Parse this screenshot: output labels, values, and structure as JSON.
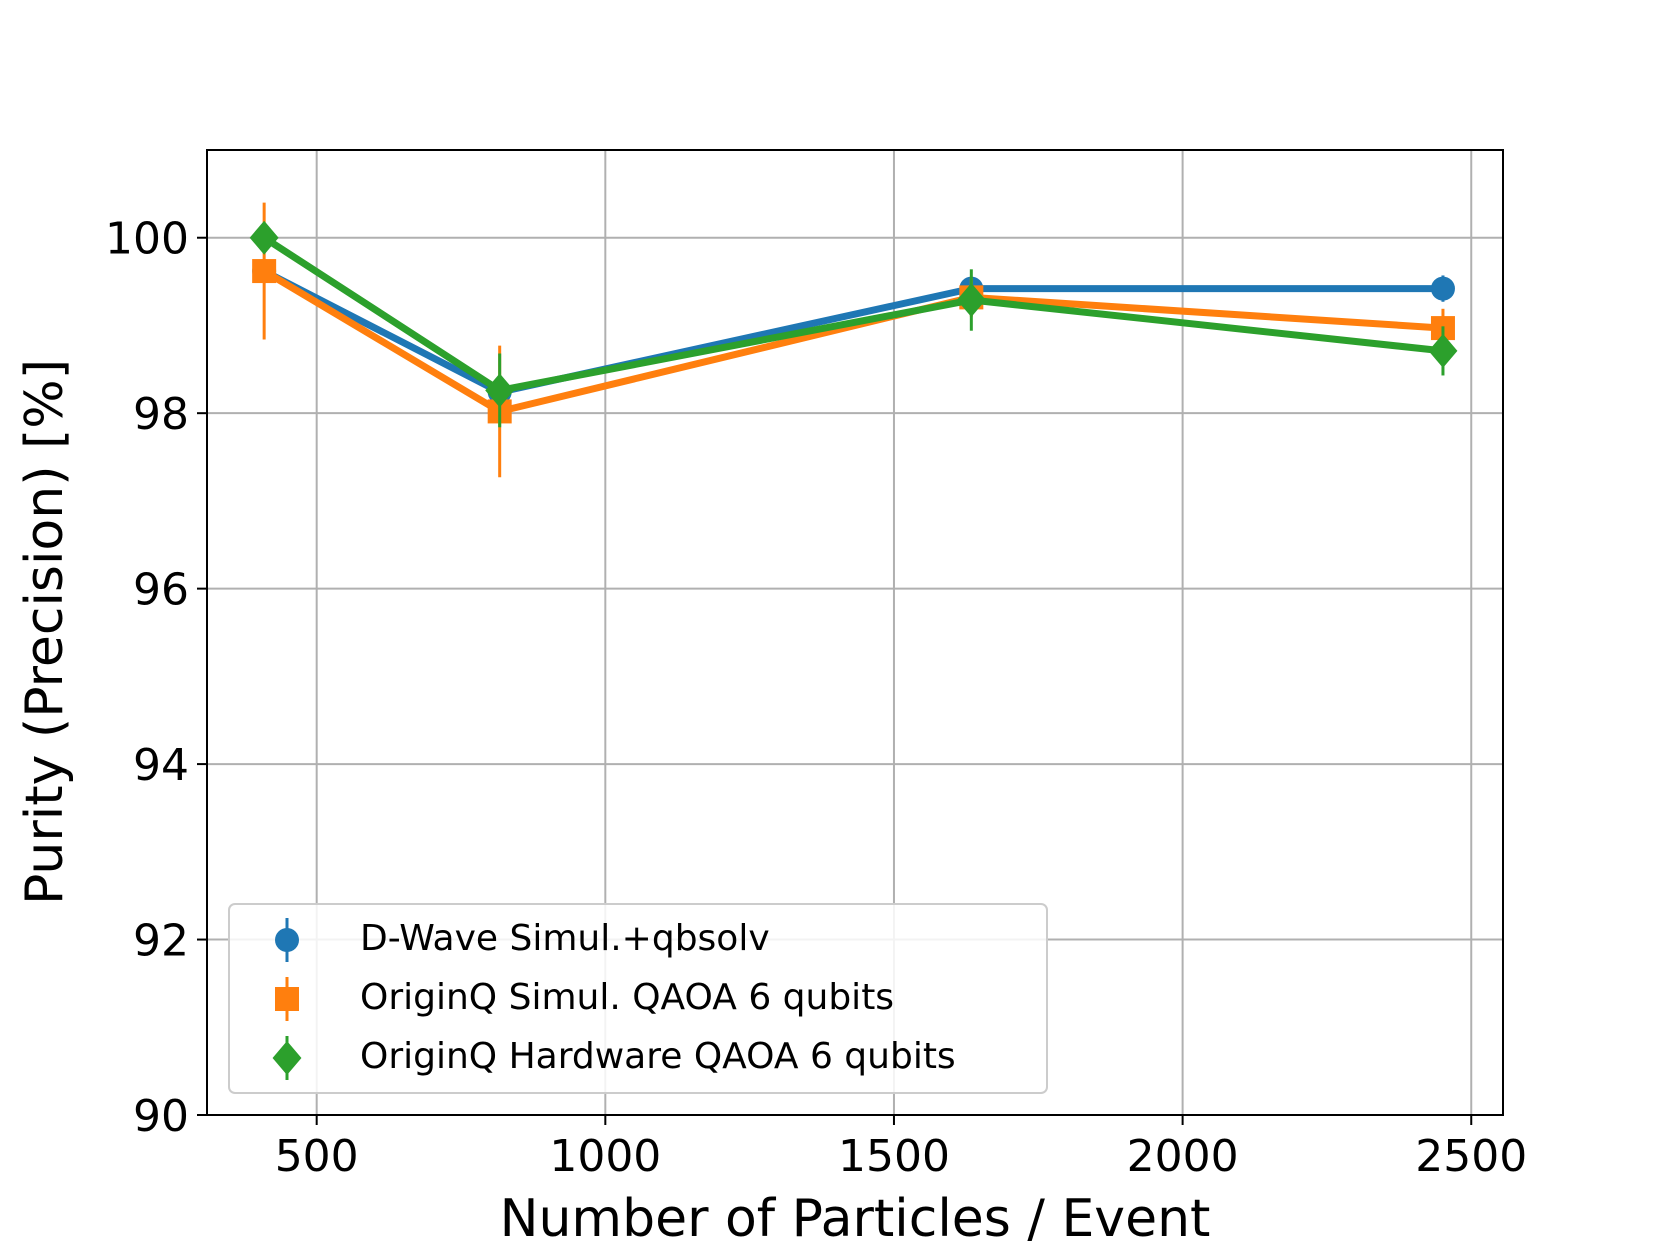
{
  "chart_data": {
    "type": "line",
    "xlabel": "Number of Particles / Event",
    "ylabel": "Purity (Precision) [%]",
    "xlim": [
      310,
      2555
    ],
    "ylim": [
      90,
      101
    ],
    "x_ticks": [
      500,
      1000,
      1500,
      2000,
      2500
    ],
    "y_ticks": [
      90,
      92,
      94,
      96,
      98,
      100
    ],
    "x_tick_labels": [
      "500",
      "1000",
      "1500",
      "2000",
      "2500"
    ],
    "y_tick_labels": [
      "90",
      "92",
      "94",
      "96",
      "98",
      "100"
    ],
    "grid": true,
    "legend_position": "lower-left",
    "series": [
      {
        "name": "D-Wave Simul.+qbsolv",
        "color": "#1f77b4",
        "marker": "circle",
        "x": [
          409,
          817,
          1634,
          2451
        ],
        "y": [
          99.62,
          98.24,
          99.42,
          99.42
        ],
        "yerr": [
          0.05,
          0.05,
          0.05,
          0.15
        ]
      },
      {
        "name": "OriginQ Simul. QAOA 6 qubits",
        "color": "#ff7f0e",
        "marker": "square",
        "x": [
          409,
          817,
          1634,
          2451
        ],
        "y": [
          99.62,
          98.02,
          99.32,
          98.97
        ],
        "yerr": [
          0.78,
          0.75,
          0.22,
          0.22
        ]
      },
      {
        "name": "OriginQ Hardware QAOA 6 qubits",
        "color": "#2ca02c",
        "marker": "diamond",
        "x": [
          409,
          817,
          1634,
          2451
        ],
        "y": [
          100.0,
          98.26,
          99.29,
          98.71
        ],
        "yerr": [
          0.0,
          0.42,
          0.35,
          0.28
        ]
      }
    ]
  }
}
